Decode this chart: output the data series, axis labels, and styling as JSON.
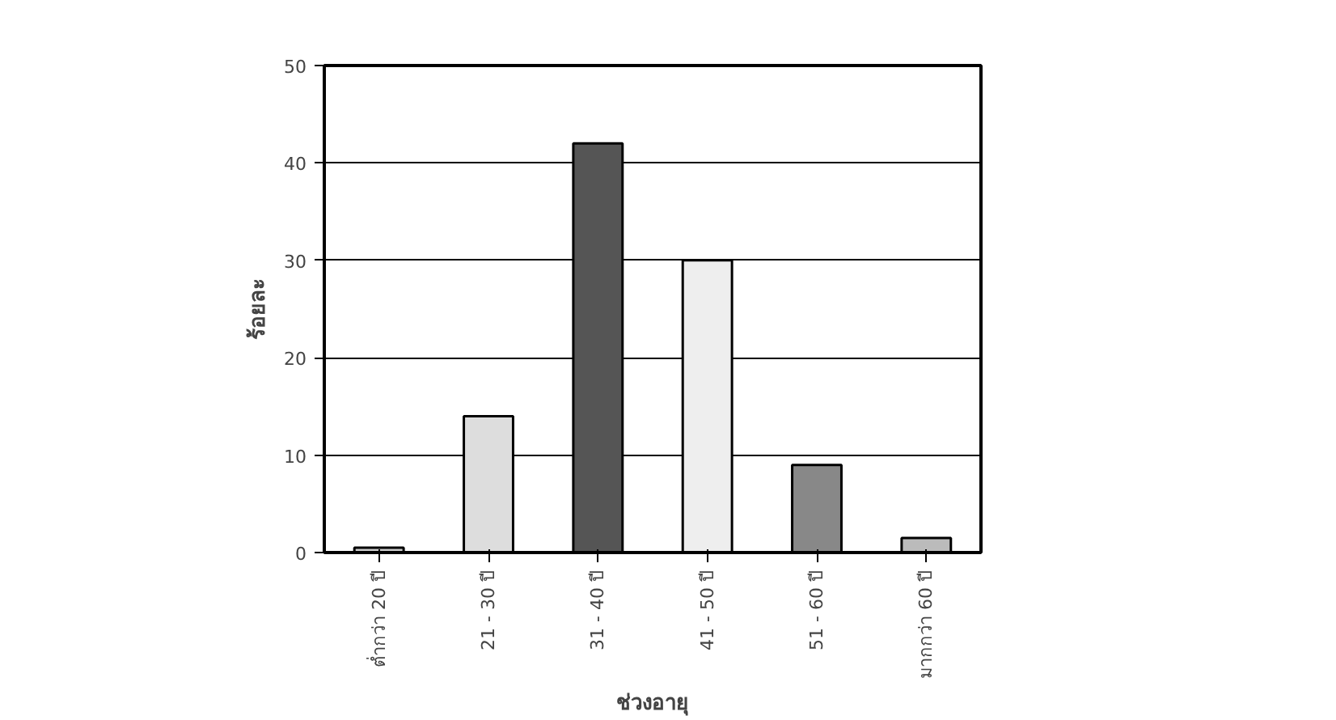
{
  "chart_data": {
    "type": "bar",
    "xlabel": "ช่วงอายุ",
    "ylabel": "ร้อยละ",
    "categories": [
      "ต่ำกว่า 20 ปี",
      "21 - 30 ปี",
      "31 - 40 ปี",
      "41 - 50 ปี",
      "51 - 60 ปี",
      "มากกว่า 60 ปี"
    ],
    "values": [
      0.5,
      14,
      42,
      30,
      9,
      1.5
    ],
    "colors": [
      "#cccccc",
      "#dddddd",
      "#555555",
      "#eeeeee",
      "#888888",
      "#bbbbbb"
    ],
    "ylim": [
      0,
      50
    ],
    "yticks": [
      0,
      10,
      20,
      30,
      40,
      50
    ],
    "grid": "y"
  }
}
